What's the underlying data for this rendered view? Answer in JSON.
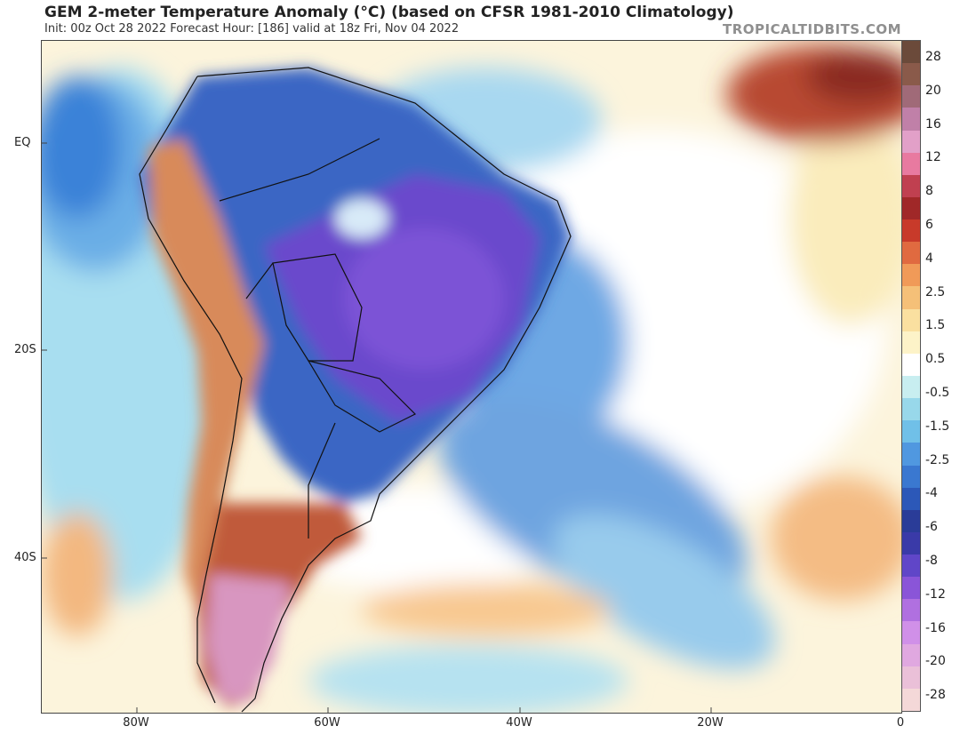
{
  "header": {
    "title": "GEM 2-meter Temperature Anomaly (°C) (based on CFSR 1981-2010 Climatology)",
    "subtitle": "Init: 00z Oct 28 2022   Forecast Hour: [186]   valid at 18z Fri, Nov 04 2022",
    "brand": "TROPICALTIDBITS.COM"
  },
  "map": {
    "lat_labels": [
      "EQ",
      "20S",
      "40S"
    ],
    "lon_labels": [
      "80W",
      "60W",
      "40W",
      "20W",
      "0"
    ]
  },
  "colorbar": {
    "labels": [
      "28",
      "20",
      "16",
      "12",
      "8",
      "6",
      "4",
      "2.5",
      "1.5",
      "0.5",
      "-0.5",
      "-1.5",
      "-2.5",
      "-4",
      "-6",
      "-8",
      "-12",
      "-16",
      "-20",
      "-28"
    ],
    "colors": [
      "#6b4a3a",
      "#8a5a4a",
      "#a06a78",
      "#c080a8",
      "#e2a0c8",
      "#e87aa0",
      "#c04050",
      "#a02828",
      "#c83a2a",
      "#e06a40",
      "#f09a58",
      "#f5c078",
      "#fae0a0",
      "#fdf3c8",
      "#ffffff",
      "#c8eef0",
      "#98d8ea",
      "#70c0e8",
      "#5098e0",
      "#3a78d0",
      "#2c58b8",
      "#2a3c98",
      "#3a3aa8",
      "#6046c8",
      "#8a55d8",
      "#b070e0",
      "#d090e8",
      "#e0a8e0",
      "#eac0d8",
      "#f4d8d8"
    ]
  }
}
